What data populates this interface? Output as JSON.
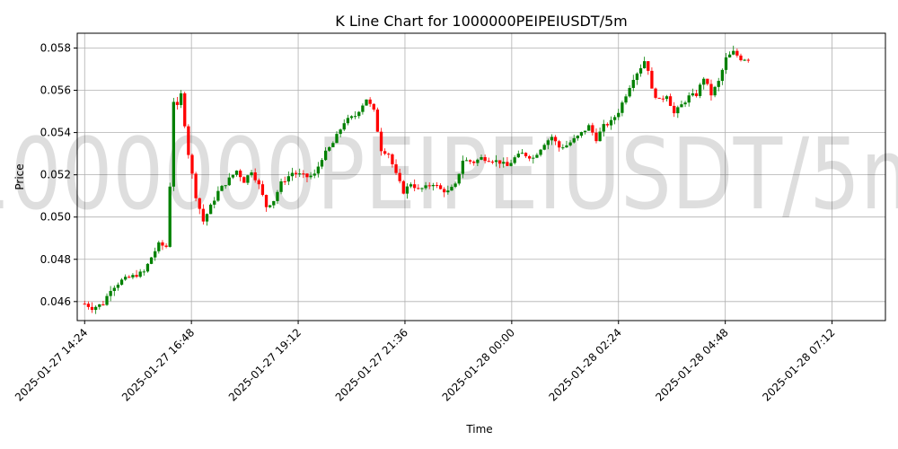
{
  "chart_data": {
    "type": "candlestick",
    "title": "K Line Chart for 1000000PEIPEIUSDT/5m",
    "xlabel": "Time",
    "ylabel": "Price",
    "watermark": "1000000PEIPEIUSDT/5m",
    "x_ticks": [
      "2025-01-27 14:24",
      "2025-01-27 16:48",
      "2025-01-27 19:12",
      "2025-01-27 21:36",
      "2025-01-28 00:00",
      "2025-01-28 02:24",
      "2025-01-28 04:48",
      "2025-01-28 07:12"
    ],
    "y_ticks": [
      "0.046",
      "0.048",
      "0.050",
      "0.052",
      "0.054",
      "0.056",
      "0.058"
    ],
    "y_tick_values": [
      0.046,
      0.048,
      0.05,
      0.052,
      0.054,
      0.056,
      0.058
    ],
    "ylim": [
      0.0451,
      0.0587
    ],
    "xlim_minutes": [
      -10,
      1080
    ],
    "interval_minutes": 5,
    "grid": true,
    "colors": {
      "up": "#008000",
      "down": "#ff0000",
      "grid": "#b0b0b0",
      "axis": "#000000"
    },
    "close_anchors": [
      [
        0,
        0.0459
      ],
      [
        10,
        0.0457
      ],
      [
        25,
        0.0459
      ],
      [
        35,
        0.0466
      ],
      [
        50,
        0.047
      ],
      [
        65,
        0.0472
      ],
      [
        80,
        0.0474
      ],
      [
        90,
        0.0481
      ],
      [
        100,
        0.0487
      ],
      [
        110,
        0.0486
      ],
      [
        115,
        0.0515
      ],
      [
        120,
        0.0555
      ],
      [
        125,
        0.0552
      ],
      [
        130,
        0.0558
      ],
      [
        140,
        0.053
      ],
      [
        150,
        0.051
      ],
      [
        160,
        0.0498
      ],
      [
        170,
        0.0505
      ],
      [
        180,
        0.0512
      ],
      [
        195,
        0.0518
      ],
      [
        205,
        0.0522
      ],
      [
        215,
        0.0517
      ],
      [
        225,
        0.0522
      ],
      [
        235,
        0.0515
      ],
      [
        245,
        0.0505
      ],
      [
        255,
        0.0508
      ],
      [
        265,
        0.0516
      ],
      [
        280,
        0.0521
      ],
      [
        290,
        0.052
      ],
      [
        300,
        0.0519
      ],
      [
        310,
        0.052
      ],
      [
        320,
        0.0528
      ],
      [
        335,
        0.0535
      ],
      [
        350,
        0.0545
      ],
      [
        365,
        0.0548
      ],
      [
        380,
        0.0556
      ],
      [
        390,
        0.055
      ],
      [
        400,
        0.0532
      ],
      [
        410,
        0.053
      ],
      [
        420,
        0.052
      ],
      [
        430,
        0.0512
      ],
      [
        440,
        0.0516
      ],
      [
        450,
        0.0513
      ],
      [
        460,
        0.0514
      ],
      [
        470,
        0.0516
      ],
      [
        480,
        0.0513
      ],
      [
        490,
        0.0512
      ],
      [
        500,
        0.0515
      ],
      [
        510,
        0.0527
      ],
      [
        525,
        0.0526
      ],
      [
        535,
        0.0528
      ],
      [
        550,
        0.0527
      ],
      [
        560,
        0.0526
      ],
      [
        570,
        0.0524
      ],
      [
        580,
        0.0528
      ],
      [
        590,
        0.053
      ],
      [
        605,
        0.0528
      ],
      [
        620,
        0.0535
      ],
      [
        630,
        0.0538
      ],
      [
        640,
        0.0533
      ],
      [
        650,
        0.0534
      ],
      [
        665,
        0.0538
      ],
      [
        680,
        0.0543
      ],
      [
        690,
        0.0537
      ],
      [
        700,
        0.0543
      ],
      [
        710,
        0.0545
      ],
      [
        720,
        0.055
      ],
      [
        730,
        0.0558
      ],
      [
        740,
        0.0566
      ],
      [
        750,
        0.0571
      ],
      [
        755,
        0.0574
      ],
      [
        760,
        0.057
      ],
      [
        765,
        0.056
      ],
      [
        775,
        0.0555
      ],
      [
        785,
        0.0558
      ],
      [
        795,
        0.0549
      ],
      [
        805,
        0.0553
      ],
      [
        815,
        0.0557
      ],
      [
        825,
        0.0558
      ],
      [
        835,
        0.0566
      ],
      [
        845,
        0.0558
      ],
      [
        855,
        0.0564
      ],
      [
        865,
        0.0575
      ],
      [
        875,
        0.0578
      ],
      [
        885,
        0.0575
      ],
      [
        895,
        0.0575
      ]
    ],
    "random_seed": 7
  }
}
